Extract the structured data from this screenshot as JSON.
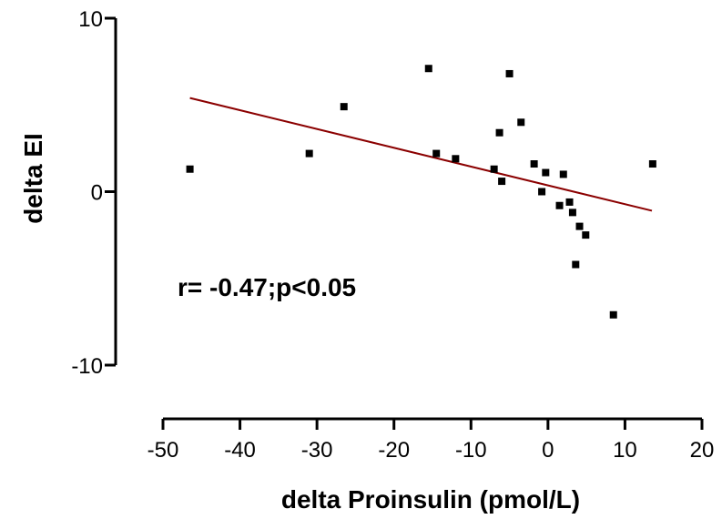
{
  "chart_data": {
    "type": "scatter",
    "xlabel": "delta Proinsulin (pmol/L)",
    "ylabel": "delta EI",
    "xlim": [
      -50,
      20
    ],
    "ylim": [
      -10,
      10
    ],
    "xticks": [
      -50,
      -40,
      -30,
      -20,
      -10,
      0,
      10,
      20
    ],
    "yticks": [
      -10,
      0,
      10
    ],
    "xtick_labels": [
      "-50",
      "-40",
      "-30",
      "-20",
      "-10",
      "0",
      "10",
      "20"
    ],
    "ytick_labels": [
      "-10",
      "0",
      "10"
    ],
    "grid": false,
    "annotation": "r= -0.47;p<0.05",
    "points": [
      {
        "x": -46.5,
        "y": 1.3
      },
      {
        "x": -31.0,
        "y": 2.2
      },
      {
        "x": -26.5,
        "y": 4.9
      },
      {
        "x": -15.5,
        "y": 7.1
      },
      {
        "x": -14.5,
        "y": 2.2
      },
      {
        "x": -12.0,
        "y": 1.9
      },
      {
        "x": -7.0,
        "y": 1.3
      },
      {
        "x": -6.3,
        "y": 3.4
      },
      {
        "x": -6.0,
        "y": 0.6
      },
      {
        "x": -5.0,
        "y": 6.8
      },
      {
        "x": -3.5,
        "y": 4.0
      },
      {
        "x": -1.8,
        "y": 1.6
      },
      {
        "x": -0.8,
        "y": 0.0
      },
      {
        "x": -0.3,
        "y": 1.1
      },
      {
        "x": 1.5,
        "y": -0.8
      },
      {
        "x": 2.0,
        "y": 1.0
      },
      {
        "x": 2.8,
        "y": -0.6
      },
      {
        "x": 3.2,
        "y": -1.2
      },
      {
        "x": 3.6,
        "y": -4.2
      },
      {
        "x": 4.1,
        "y": -2.0
      },
      {
        "x": 4.9,
        "y": -2.5
      },
      {
        "x": 8.5,
        "y": -7.1
      },
      {
        "x": 13.6,
        "y": 1.6
      }
    ],
    "fit_line": {
      "x": [
        -46.5,
        13.5
      ],
      "y": [
        5.4,
        -1.1
      ]
    },
    "colors": {
      "points": "#000000",
      "fit_line": "#8b0000",
      "axes": "#000000"
    }
  }
}
